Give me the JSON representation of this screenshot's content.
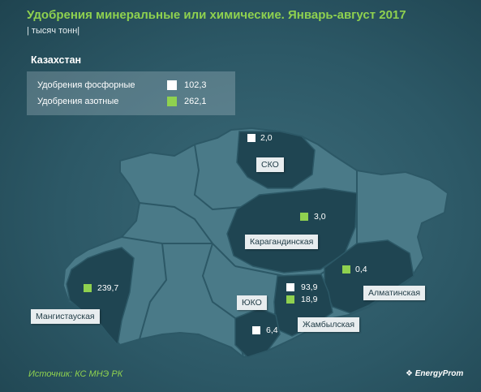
{
  "header": {
    "title": "Удобрения минеральные или химические. Январь-август 2017",
    "unit": "| тысяч тонн|"
  },
  "summary": {
    "region": "Казахстан",
    "rows": [
      {
        "label": "Удобрения фосфорные",
        "value": "102,3",
        "color": "#ffffff"
      },
      {
        "label": "Удобрения азотные",
        "value": "262,1",
        "color": "#8fd14f"
      }
    ]
  },
  "regions": {
    "sko": {
      "name": "СКО",
      "values": [
        "2,0"
      ]
    },
    "karaganda": {
      "name": "Карагандинская",
      "values": [
        "3,0"
      ]
    },
    "mangystau": {
      "name": "Мангистауская",
      "values": [
        "239,7"
      ]
    },
    "almaty": {
      "name": "Алматинская",
      "values": [
        "0,4"
      ]
    },
    "zhambyl": {
      "name": "Жамбылская",
      "values": [
        "93,9",
        "18,9"
      ]
    },
    "uko": {
      "name": "ЮКО",
      "values": [
        "6,4"
      ]
    }
  },
  "colors": {
    "phosphate": "#ffffff",
    "nitrogen": "#8fd14f",
    "map_fill": "#4a7a88",
    "highlight_fill": "#1f4552"
  },
  "footer": {
    "source": "Источник: КС МНЭ РК",
    "logo": "EnergyProm"
  }
}
